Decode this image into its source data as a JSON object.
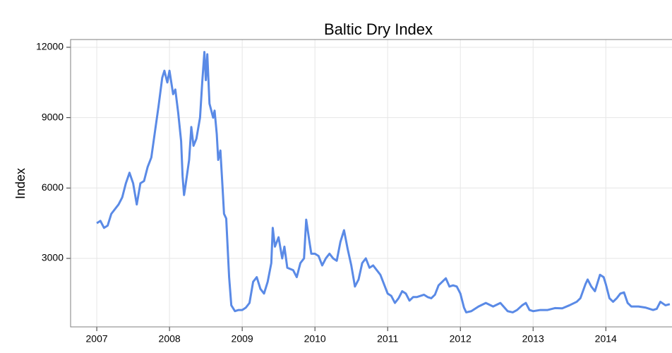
{
  "chart_data": {
    "type": "line",
    "title": "Baltic Dry Index",
    "y_label": "Index",
    "color": "#5a8ae6",
    "grid": true,
    "xlim": [
      2006.64,
      2014.91
    ],
    "xticks": [
      2007,
      2008,
      2009,
      2010,
      2011,
      2012,
      2013,
      2014
    ],
    "ylim": [
      80,
      12330
    ],
    "yticks": [
      3000,
      6000,
      9000,
      12000
    ],
    "x": [
      2007.0,
      2007.05,
      2007.1,
      2007.15,
      2007.2,
      2007.3,
      2007.35,
      2007.4,
      2007.45,
      2007.5,
      2007.55,
      2007.6,
      2007.65,
      2007.7,
      2007.75,
      2007.8,
      2007.85,
      2007.9,
      2007.93,
      2007.97,
      2008.0,
      2008.05,
      2008.08,
      2008.12,
      2008.16,
      2008.18,
      2008.2,
      2008.22,
      2008.27,
      2008.3,
      2008.33,
      2008.37,
      2008.42,
      2008.45,
      2008.48,
      2008.5,
      2008.52,
      2008.55,
      2008.6,
      2008.62,
      2008.65,
      2008.67,
      2008.7,
      2008.73,
      2008.75,
      2008.78,
      2008.82,
      2008.85,
      2008.9,
      2008.95,
      2009.0,
      2009.05,
      2009.1,
      2009.15,
      2009.2,
      2009.25,
      2009.3,
      2009.35,
      2009.4,
      2009.42,
      2009.45,
      2009.5,
      2009.55,
      2009.58,
      2009.62,
      2009.7,
      2009.75,
      2009.8,
      2009.85,
      2009.88,
      2009.92,
      2009.95,
      2010.0,
      2010.05,
      2010.1,
      2010.15,
      2010.2,
      2010.25,
      2010.3,
      2010.35,
      2010.4,
      2010.45,
      2010.5,
      2010.55,
      2010.6,
      2010.65,
      2010.7,
      2010.75,
      2010.8,
      2010.9,
      2010.95,
      2011.0,
      2011.05,
      2011.1,
      2011.15,
      2011.2,
      2011.25,
      2011.3,
      2011.35,
      2011.4,
      2011.5,
      2011.55,
      2011.6,
      2011.65,
      2011.7,
      2011.75,
      2011.8,
      2011.85,
      2011.9,
      2011.95,
      2012.0,
      2012.05,
      2012.08,
      2012.15,
      2012.25,
      2012.35,
      2012.45,
      2012.55,
      2012.65,
      2012.72,
      2012.78,
      2012.85,
      2012.9,
      2012.95,
      2013.0,
      2013.1,
      2013.2,
      2013.3,
      2013.4,
      2013.5,
      2013.6,
      2013.65,
      2013.72,
      2013.75,
      2013.8,
      2013.85,
      2013.92,
      2013.97,
      2014.0,
      2014.05,
      2014.1,
      2014.15,
      2014.2,
      2014.25,
      2014.3,
      2014.35,
      2014.45,
      2014.55,
      2014.65,
      2014.7,
      2014.75,
      2014.82,
      2014.88
    ],
    "values": [
      4500,
      4600,
      4300,
      4400,
      4900,
      5300,
      5600,
      6200,
      6650,
      6200,
      5300,
      6200,
      6300,
      6900,
      7300,
      8400,
      9500,
      10700,
      11000,
      10500,
      11000,
      10000,
      10200,
      9200,
      8000,
      6500,
      5700,
      6100,
      7200,
      8600,
      7800,
      8100,
      9000,
      10500,
      11800,
      10600,
      11700,
      9600,
      9000,
      9300,
      8300,
      7200,
      7600,
      6000,
      4900,
      4700,
      2200,
      1000,
      750,
      800,
      800,
      900,
      1100,
      2000,
      2200,
      1700,
      1500,
      2000,
      2800,
      4300,
      3500,
      3900,
      3000,
      3500,
      2600,
      2500,
      2200,
      2800,
      3000,
      4650,
      3800,
      3200,
      3200,
      3100,
      2700,
      3000,
      3200,
      3000,
      2900,
      3700,
      4200,
      3400,
      2700,
      1800,
      2100,
      2800,
      3000,
      2600,
      2700,
      2300,
      1900,
      1500,
      1400,
      1100,
      1300,
      1600,
      1500,
      1200,
      1350,
      1350,
      1450,
      1350,
      1300,
      1450,
      1850,
      2000,
      2150,
      1800,
      1850,
      1800,
      1500,
      900,
      700,
      750,
      950,
      1100,
      950,
      1100,
      750,
      700,
      800,
      1000,
      1100,
      800,
      750,
      800,
      800,
      880,
      870,
      1000,
      1150,
      1300,
      1900,
      2100,
      1800,
      1600,
      2300,
      2200,
      1900,
      1300,
      1150,
      1300,
      1500,
      1550,
      1100,
      950,
      950,
      900,
      800,
      850,
      1150,
      1000,
      1050
    ]
  }
}
